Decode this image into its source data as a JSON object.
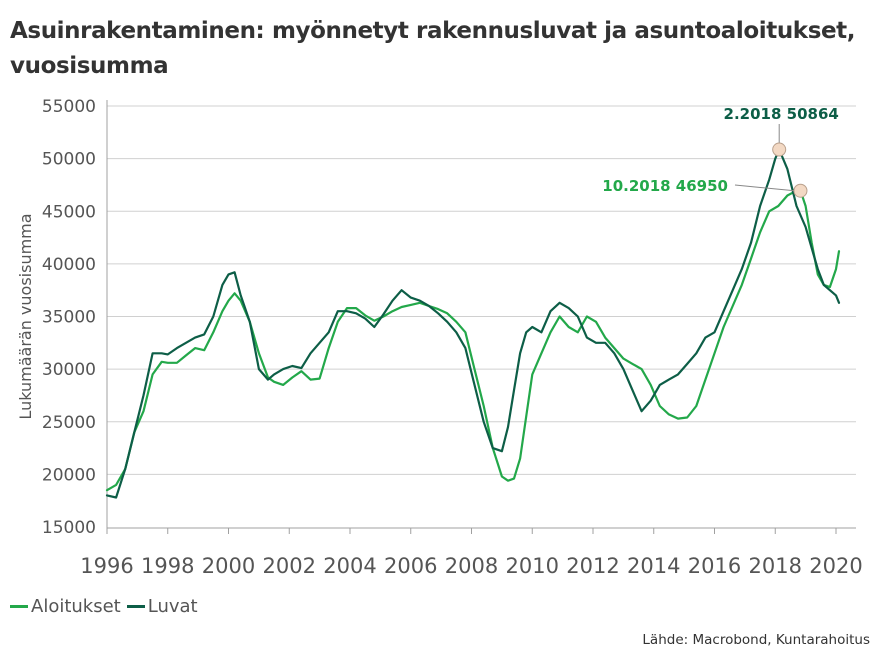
{
  "chart_data": {
    "type": "line",
    "title": "Asuinrakentaminen: myönnetyt rakennusluvat ja asuntoaloitukset, vuosisumma",
    "xlabel": "",
    "ylabel": "Lukumäärän vuosisumma",
    "xlim": [
      1996,
      2020.3
    ],
    "ylim": [
      15000,
      55000
    ],
    "x_ticks": [
      "1996",
      "1998",
      "2000",
      "2002",
      "2004",
      "2006",
      "2008",
      "2010",
      "2012",
      "2014",
      "2016",
      "2018",
      "2020"
    ],
    "y_ticks": [
      "15000",
      "20000",
      "25000",
      "30000",
      "35000",
      "40000",
      "45000",
      "50000",
      "55000"
    ],
    "grid": "horizontal",
    "legend_position": "bottom-left",
    "series": [
      {
        "name": "Aloitukset",
        "color": "#23a84a",
        "x": [
          1996.0,
          1996.3,
          1996.6,
          1996.9,
          1997.2,
          1997.5,
          1997.8,
          1998.0,
          1998.3,
          1998.6,
          1998.9,
          1999.2,
          1999.5,
          1999.8,
          2000.0,
          2000.2,
          2000.4,
          2000.7,
          2001.0,
          2001.3,
          2001.5,
          2001.8,
          2002.1,
          2002.4,
          2002.7,
          2003.0,
          2003.3,
          2003.6,
          2003.9,
          2004.2,
          2004.5,
          2004.8,
          2005.1,
          2005.4,
          2005.7,
          2006.0,
          2006.3,
          2006.6,
          2006.9,
          2007.2,
          2007.5,
          2007.8,
          2008.1,
          2008.4,
          2008.7,
          2009.0,
          2009.2,
          2009.4,
          2009.6,
          2009.8,
          2010.0,
          2010.3,
          2010.6,
          2010.9,
          2011.2,
          2011.5,
          2011.8,
          2012.1,
          2012.4,
          2012.7,
          2013.0,
          2013.3,
          2013.6,
          2013.9,
          2014.2,
          2014.5,
          2014.8,
          2015.1,
          2015.4,
          2015.7,
          2016.0,
          2016.3,
          2016.6,
          2016.9,
          2017.2,
          2017.5,
          2017.8,
          2018.1,
          2018.4,
          2018.6,
          2018.83,
          2019.0,
          2019.2,
          2019.4,
          2019.6,
          2019.8,
          2020.0,
          2020.1
        ],
        "y": [
          18500,
          19000,
          20500,
          24000,
          26000,
          29500,
          30700,
          30600,
          30600,
          31300,
          32000,
          31800,
          33500,
          35500,
          36500,
          37200,
          36500,
          34500,
          31500,
          29200,
          28800,
          28500,
          29200,
          29800,
          29000,
          29100,
          32000,
          34500,
          35800,
          35800,
          35100,
          34600,
          35000,
          35500,
          35900,
          36100,
          36300,
          36000,
          35700,
          35300,
          34500,
          33500,
          30000,
          26500,
          22500,
          19800,
          19400,
          19600,
          21500,
          25500,
          29500,
          31500,
          33500,
          35000,
          34000,
          33500,
          35000,
          34500,
          33000,
          32000,
          31000,
          30500,
          30000,
          28500,
          26500,
          25700,
          25300,
          25400,
          26500,
          29000,
          31500,
          34000,
          36000,
          38000,
          40500,
          43000,
          45000,
          45500,
          46500,
          46800,
          46950,
          45500,
          42000,
          39000,
          38000,
          37800,
          39500,
          41200
        ]
      },
      {
        "name": "Luvat",
        "color": "#0d5e47",
        "x": [
          1996.0,
          1996.3,
          1996.6,
          1996.9,
          1997.2,
          1997.5,
          1997.8,
          1998.0,
          1998.3,
          1998.6,
          1998.9,
          1999.2,
          1999.5,
          1999.8,
          2000.0,
          2000.2,
          2000.4,
          2000.7,
          2001.0,
          2001.3,
          2001.5,
          2001.8,
          2002.1,
          2002.4,
          2002.7,
          2003.0,
          2003.3,
          2003.6,
          2003.9,
          2004.2,
          2004.5,
          2004.8,
          2005.1,
          2005.4,
          2005.7,
          2006.0,
          2006.3,
          2006.6,
          2006.9,
          2007.2,
          2007.5,
          2007.8,
          2008.1,
          2008.4,
          2008.7,
          2009.0,
          2009.2,
          2009.4,
          2009.6,
          2009.8,
          2010.0,
          2010.3,
          2010.6,
          2010.9,
          2011.2,
          2011.5,
          2011.8,
          2012.1,
          2012.4,
          2012.7,
          2013.0,
          2013.3,
          2013.6,
          2013.9,
          2014.2,
          2014.5,
          2014.8,
          2015.1,
          2015.4,
          2015.7,
          2016.0,
          2016.3,
          2016.6,
          2016.9,
          2017.2,
          2017.5,
          2017.8,
          2018.0,
          2018.13,
          2018.4,
          2018.7,
          2019.0,
          2019.2,
          2019.4,
          2019.6,
          2019.8,
          2020.0,
          2020.1
        ],
        "y": [
          18000,
          17800,
          20500,
          24000,
          27500,
          31500,
          31500,
          31400,
          32000,
          32500,
          33000,
          33300,
          35000,
          38000,
          39000,
          39200,
          37000,
          34500,
          30000,
          29000,
          29500,
          30000,
          30300,
          30100,
          31500,
          32500,
          33500,
          35500,
          35500,
          35300,
          34800,
          34000,
          35200,
          36500,
          37500,
          36800,
          36500,
          36000,
          35300,
          34500,
          33500,
          32000,
          28500,
          25000,
          22500,
          22200,
          24500,
          28000,
          31500,
          33500,
          34000,
          33500,
          35500,
          36300,
          35800,
          35000,
          33000,
          32500,
          32500,
          31500,
          30000,
          28000,
          26000,
          27000,
          28500,
          29000,
          29500,
          30500,
          31500,
          33000,
          33500,
          35500,
          37500,
          39500,
          42000,
          45500,
          48000,
          50000,
          50864,
          49000,
          45500,
          43500,
          41500,
          39500,
          38000,
          37500,
          37000,
          36300
        ]
      }
    ],
    "annotations": [
      {
        "label": "2.2018 50864",
        "x": 2018.13,
        "y": 50864,
        "color": "#0d5e47"
      },
      {
        "label": "10.2018 46950",
        "x": 2018.83,
        "y": 46950,
        "color": "#23a84a"
      }
    ]
  },
  "legend": [
    {
      "label": "Aloitukset",
      "color": "#23a84a"
    },
    {
      "label": "Luvat",
      "color": "#0d5e47"
    }
  ],
  "source": "Lähde: Macrobond, Kuntarahoitus"
}
